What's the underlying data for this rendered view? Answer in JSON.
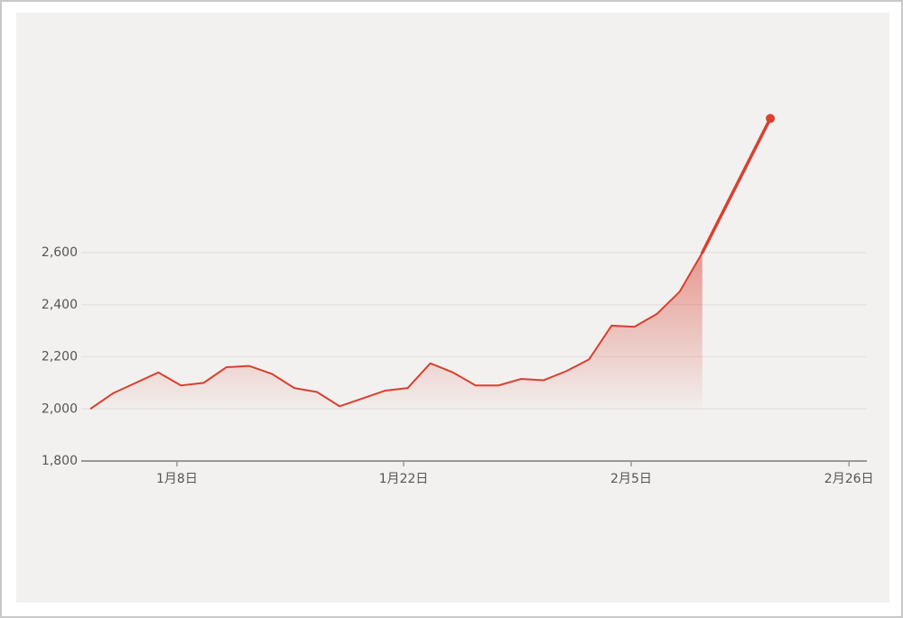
{
  "chart_data": {
    "type": "line",
    "x": [
      0,
      1,
      2,
      3,
      4,
      5,
      6,
      7,
      8,
      9,
      10,
      11,
      12,
      13,
      14,
      15,
      16,
      17,
      18,
      19,
      20,
      21,
      22,
      23,
      24,
      25,
      26,
      27,
      30
    ],
    "values": [
      2000,
      2060,
      2100,
      2140,
      2090,
      2100,
      2160,
      2165,
      2135,
      2080,
      2065,
      2010,
      2040,
      2070,
      2080,
      2175,
      2140,
      2090,
      2090,
      2115,
      2110,
      2145,
      2190,
      2320,
      2315,
      2365,
      2450,
      2600,
      3115
    ],
    "color": "#d9412f",
    "xlim": [
      -0.4,
      34.26
    ],
    "xticks": [
      {
        "value": 3.82,
        "label": "1月8日"
      },
      {
        "value": 13.82,
        "label": "1月22日"
      },
      {
        "value": 23.86,
        "label": "2月5日"
      },
      {
        "value": 33.47,
        "label": "2月26日"
      }
    ],
    "ylim": [
      1800,
      3400
    ],
    "yticks": [
      {
        "value": 1800,
        "label": "1,800"
      },
      {
        "value": 2000,
        "label": "2,000"
      },
      {
        "value": 2200,
        "label": "2,200"
      },
      {
        "value": 2400,
        "label": "2,400"
      },
      {
        "value": 2600,
        "label": "2,600"
      }
    ],
    "grid": true
  }
}
